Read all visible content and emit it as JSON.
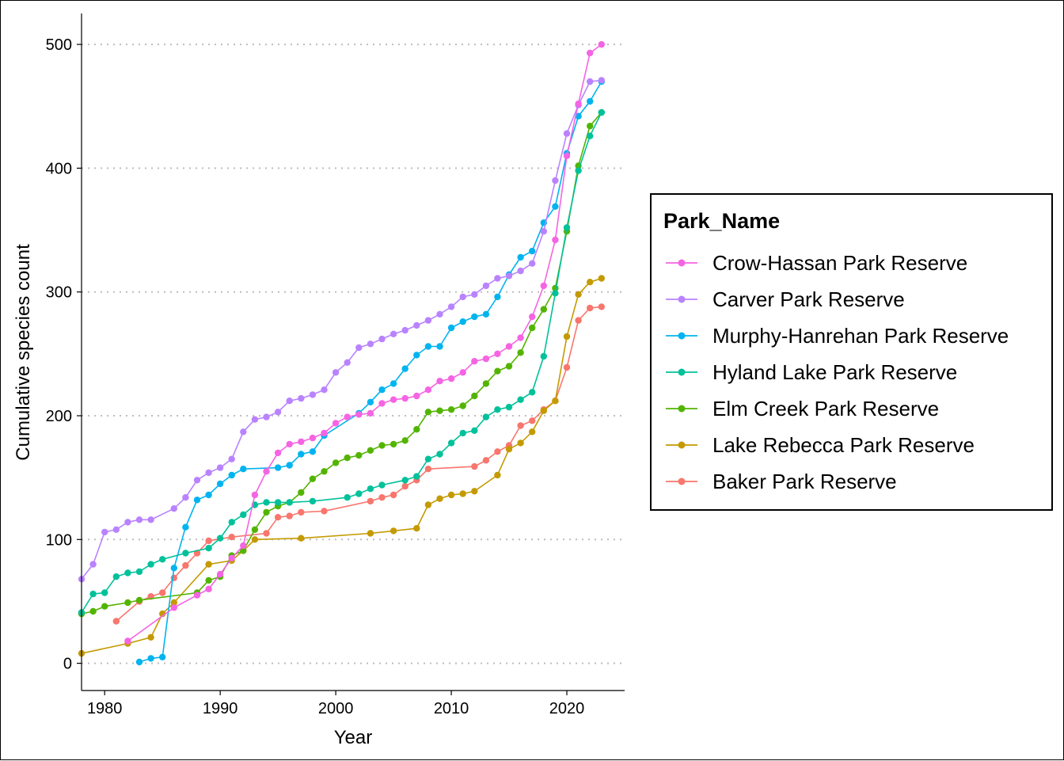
{
  "chart_data": {
    "type": "line",
    "title": "",
    "xlabel": "Year",
    "ylabel": "Cumulative species count",
    "legend_title": "Park_Name",
    "legend_position": "right",
    "grid": "horizontal dotted",
    "xlim": [
      1978,
      2025
    ],
    "ylim": [
      -22,
      525
    ],
    "xticks": [
      1980,
      1990,
      2000,
      2010,
      2020
    ],
    "yticks": [
      0,
      100,
      200,
      300,
      400,
      500
    ],
    "series": [
      {
        "name": "Crow-Hassan Park Reserve",
        "color": "#F564E3",
        "points": [
          [
            1982,
            18
          ],
          [
            1986,
            45
          ],
          [
            1988,
            55
          ],
          [
            1989,
            60
          ],
          [
            1990,
            72
          ],
          [
            1991,
            85
          ],
          [
            1992,
            95
          ],
          [
            1993,
            136
          ],
          [
            1994,
            155
          ],
          [
            1995,
            170
          ],
          [
            1996,
            177
          ],
          [
            1997,
            179
          ],
          [
            1998,
            182
          ],
          [
            1999,
            186
          ],
          [
            2000,
            194
          ],
          [
            2001,
            199
          ],
          [
            2002,
            201
          ],
          [
            2003,
            202
          ],
          [
            2004,
            210
          ],
          [
            2005,
            213
          ],
          [
            2006,
            214
          ],
          [
            2007,
            216
          ],
          [
            2008,
            221
          ],
          [
            2009,
            228
          ],
          [
            2010,
            230
          ],
          [
            2011,
            235
          ],
          [
            2012,
            244
          ],
          [
            2013,
            246
          ],
          [
            2014,
            250
          ],
          [
            2015,
            256
          ],
          [
            2016,
            263
          ],
          [
            2017,
            280
          ],
          [
            2018,
            305
          ],
          [
            2019,
            342
          ],
          [
            2020,
            410
          ],
          [
            2021,
            452
          ],
          [
            2022,
            493
          ],
          [
            2023,
            500
          ]
        ]
      },
      {
        "name": "Carver Park Reserve",
        "color": "#B983FF",
        "points": [
          [
            1978,
            68
          ],
          [
            1979,
            80
          ],
          [
            1980,
            106
          ],
          [
            1981,
            108
          ],
          [
            1982,
            114
          ],
          [
            1983,
            116
          ],
          [
            1984,
            116
          ],
          [
            1986,
            125
          ],
          [
            1987,
            134
          ],
          [
            1988,
            148
          ],
          [
            1989,
            154
          ],
          [
            1990,
            158
          ],
          [
            1991,
            165
          ],
          [
            1992,
            187
          ],
          [
            1993,
            197
          ],
          [
            1994,
            199
          ],
          [
            1995,
            203
          ],
          [
            1996,
            212
          ],
          [
            1997,
            214
          ],
          [
            1998,
            217
          ],
          [
            1999,
            221
          ],
          [
            2000,
            235
          ],
          [
            2001,
            243
          ],
          [
            2002,
            255
          ],
          [
            2003,
            258
          ],
          [
            2004,
            262
          ],
          [
            2005,
            266
          ],
          [
            2006,
            269
          ],
          [
            2007,
            273
          ],
          [
            2008,
            277
          ],
          [
            2009,
            282
          ],
          [
            2010,
            288
          ],
          [
            2011,
            296
          ],
          [
            2012,
            298
          ],
          [
            2013,
            305
          ],
          [
            2014,
            311
          ],
          [
            2015,
            313
          ],
          [
            2016,
            317
          ],
          [
            2017,
            323
          ],
          [
            2018,
            349
          ],
          [
            2019,
            390
          ],
          [
            2020,
            428
          ],
          [
            2021,
            451
          ],
          [
            2022,
            470
          ],
          [
            2023,
            471
          ]
        ]
      },
      {
        "name": "Murphy-Hanrehan Park Reserve",
        "color": "#00B4EF",
        "points": [
          [
            1983,
            1
          ],
          [
            1984,
            4
          ],
          [
            1985,
            5
          ],
          [
            1986,
            77
          ],
          [
            1987,
            110
          ],
          [
            1988,
            132
          ],
          [
            1989,
            136
          ],
          [
            1990,
            145
          ],
          [
            1991,
            152
          ],
          [
            1992,
            157
          ],
          [
            1995,
            158
          ],
          [
            1996,
            160
          ],
          [
            1997,
            169
          ],
          [
            1998,
            171
          ],
          [
            1999,
            184
          ],
          [
            2002,
            202
          ],
          [
            2003,
            211
          ],
          [
            2004,
            221
          ],
          [
            2005,
            226
          ],
          [
            2006,
            238
          ],
          [
            2007,
            249
          ],
          [
            2008,
            256
          ],
          [
            2009,
            256
          ],
          [
            2010,
            271
          ],
          [
            2011,
            276
          ],
          [
            2012,
            280
          ],
          [
            2013,
            282
          ],
          [
            2014,
            296
          ],
          [
            2015,
            314
          ],
          [
            2016,
            328
          ],
          [
            2017,
            333
          ],
          [
            2018,
            356
          ],
          [
            2019,
            369
          ],
          [
            2020,
            412
          ],
          [
            2021,
            442
          ],
          [
            2022,
            454
          ],
          [
            2023,
            470
          ]
        ]
      },
      {
        "name": "Hyland Lake Park Reserve",
        "color": "#00C19A",
        "points": [
          [
            1978,
            41
          ],
          [
            1979,
            56
          ],
          [
            1980,
            57
          ],
          [
            1981,
            70
          ],
          [
            1982,
            73
          ],
          [
            1983,
            74
          ],
          [
            1984,
            80
          ],
          [
            1985,
            84
          ],
          [
            1987,
            89
          ],
          [
            1989,
            93
          ],
          [
            1990,
            101
          ],
          [
            1991,
            114
          ],
          [
            1992,
            120
          ],
          [
            1993,
            128
          ],
          [
            1994,
            130
          ],
          [
            1995,
            130
          ],
          [
            1996,
            130
          ],
          [
            1998,
            131
          ],
          [
            2001,
            134
          ],
          [
            2002,
            137
          ],
          [
            2003,
            141
          ],
          [
            2004,
            144
          ],
          [
            2006,
            148
          ],
          [
            2007,
            151
          ],
          [
            2008,
            165
          ],
          [
            2009,
            169
          ],
          [
            2010,
            178
          ],
          [
            2011,
            186
          ],
          [
            2012,
            188
          ],
          [
            2013,
            199
          ],
          [
            2014,
            205
          ],
          [
            2015,
            207
          ],
          [
            2016,
            213
          ],
          [
            2017,
            219
          ],
          [
            2018,
            248
          ],
          [
            2019,
            299
          ],
          [
            2020,
            352
          ],
          [
            2021,
            398
          ],
          [
            2022,
            426
          ],
          [
            2023,
            445
          ]
        ]
      },
      {
        "name": "Elm Creek Park Reserve",
        "color": "#53B400",
        "points": [
          [
            1978,
            40
          ],
          [
            1979,
            42
          ],
          [
            1980,
            46
          ],
          [
            1982,
            49
          ],
          [
            1983,
            51
          ],
          [
            1988,
            57
          ],
          [
            1989,
            67
          ],
          [
            1990,
            70
          ],
          [
            1991,
            87
          ],
          [
            1992,
            91
          ],
          [
            1993,
            108
          ],
          [
            1994,
            122
          ],
          [
            1995,
            127
          ],
          [
            1996,
            130
          ],
          [
            1997,
            138
          ],
          [
            1998,
            149
          ],
          [
            1999,
            155
          ],
          [
            2000,
            162
          ],
          [
            2001,
            166
          ],
          [
            2002,
            168
          ],
          [
            2003,
            172
          ],
          [
            2004,
            176
          ],
          [
            2005,
            177
          ],
          [
            2006,
            180
          ],
          [
            2007,
            189
          ],
          [
            2008,
            203
          ],
          [
            2009,
            204
          ],
          [
            2010,
            205
          ],
          [
            2011,
            208
          ],
          [
            2012,
            216
          ],
          [
            2013,
            226
          ],
          [
            2014,
            236
          ],
          [
            2015,
            240
          ],
          [
            2016,
            251
          ],
          [
            2017,
            271
          ],
          [
            2018,
            286
          ],
          [
            2019,
            303
          ],
          [
            2020,
            349
          ],
          [
            2021,
            402
          ],
          [
            2022,
            434
          ],
          [
            2023,
            445
          ]
        ]
      },
      {
        "name": "Lake Rebecca Park Reserve",
        "color": "#C49A00",
        "points": [
          [
            1978,
            8
          ],
          [
            1982,
            16
          ],
          [
            1984,
            21
          ],
          [
            1985,
            40
          ],
          [
            1986,
            49
          ],
          [
            1989,
            80
          ],
          [
            1991,
            83
          ],
          [
            1992,
            91
          ],
          [
            1993,
            100
          ],
          [
            1997,
            101
          ],
          [
            2003,
            105
          ],
          [
            2005,
            107
          ],
          [
            2007,
            109
          ],
          [
            2008,
            128
          ],
          [
            2009,
            133
          ],
          [
            2010,
            136
          ],
          [
            2011,
            137
          ],
          [
            2012,
            139
          ],
          [
            2014,
            152
          ],
          [
            2015,
            173
          ],
          [
            2016,
            178
          ],
          [
            2017,
            187
          ],
          [
            2018,
            204
          ],
          [
            2019,
            212
          ],
          [
            2020,
            264
          ],
          [
            2021,
            298
          ],
          [
            2022,
            308
          ],
          [
            2023,
            311
          ]
        ]
      },
      {
        "name": "Baker Park Reserve",
        "color": "#F8766D",
        "points": [
          [
            1981,
            34
          ],
          [
            1983,
            50
          ],
          [
            1984,
            54
          ],
          [
            1985,
            57
          ],
          [
            1986,
            69
          ],
          [
            1987,
            79
          ],
          [
            1988,
            89
          ],
          [
            1989,
            99
          ],
          [
            1991,
            102
          ],
          [
            1994,
            105
          ],
          [
            1995,
            118
          ],
          [
            1996,
            119
          ],
          [
            1997,
            122
          ],
          [
            1999,
            123
          ],
          [
            2003,
            131
          ],
          [
            2004,
            134
          ],
          [
            2005,
            136
          ],
          [
            2006,
            143
          ],
          [
            2007,
            148
          ],
          [
            2008,
            157
          ],
          [
            2012,
            159
          ],
          [
            2013,
            164
          ],
          [
            2014,
            171
          ],
          [
            2015,
            176
          ],
          [
            2016,
            192
          ],
          [
            2017,
            196
          ],
          [
            2018,
            205
          ],
          [
            2019,
            212
          ],
          [
            2020,
            239
          ],
          [
            2021,
            277
          ],
          [
            2022,
            287
          ],
          [
            2023,
            288
          ]
        ]
      }
    ]
  }
}
